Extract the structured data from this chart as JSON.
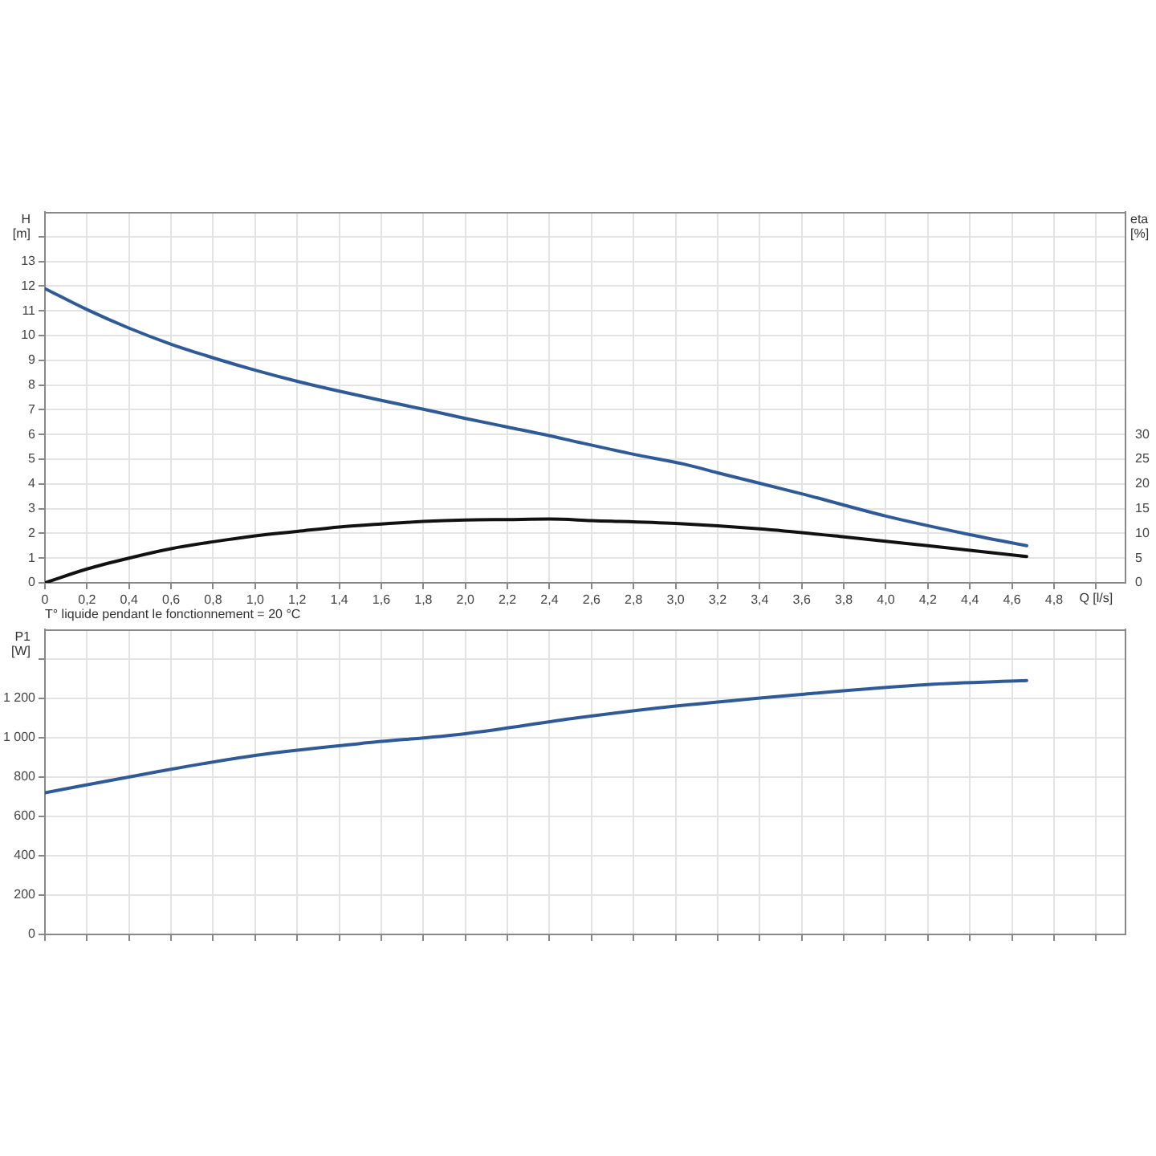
{
  "chart_data": [
    {
      "type": "line",
      "ylabel": "H [m]",
      "y2label": "eta [%]",
      "xlabel": "Q [l/s]",
      "grid": true,
      "marker": "none",
      "line_style": "solid",
      "legend": false,
      "xlim": [
        0,
        5.14
      ],
      "xticks": [
        0,
        {
          "value": 0.2,
          "label": "0,2"
        },
        {
          "value": 0.4,
          "label": "0,4"
        },
        {
          "value": 0.6,
          "label": "0,6"
        },
        {
          "value": 0.8,
          "label": "0,8"
        },
        {
          "value": 1,
          "label": "1,0"
        },
        {
          "value": 1.2,
          "label": "1,2"
        },
        {
          "value": 1.4,
          "label": "1,4"
        },
        {
          "value": 1.6,
          "label": "1,6"
        },
        {
          "value": 1.8,
          "label": "1,8"
        },
        {
          "value": 2,
          "label": "2,0"
        },
        {
          "value": 2.2,
          "label": "2,2"
        },
        {
          "value": 2.4,
          "label": "2,4"
        },
        {
          "value": 2.6,
          "label": "2,6"
        },
        {
          "value": 2.8,
          "label": "2,8"
        },
        {
          "value": 3,
          "label": "3,0"
        },
        {
          "value": 3.2,
          "label": "3,2"
        },
        {
          "value": 3.4,
          "label": "3,4"
        },
        {
          "value": 3.6,
          "label": "3,6"
        },
        {
          "value": 3.8,
          "label": "3,8"
        },
        {
          "value": 4,
          "label": "4,0"
        },
        {
          "value": 4.2,
          "label": "4,2"
        },
        {
          "value": 4.4,
          "label": "4,4"
        },
        {
          "value": 4.6,
          "label": "4,6"
        },
        {
          "value": 4.8,
          "label": "4,8"
        },
        {
          "value": 5,
          "label": null
        }
      ],
      "ylim": [
        0,
        15
      ],
      "yticks": [
        0,
        1,
        2,
        3,
        4,
        5,
        6,
        7,
        8,
        9,
        10,
        11,
        12,
        13,
        {
          "value": 14,
          "label": null
        }
      ],
      "y2lim": [
        0,
        75
      ],
      "y2ticks": [
        0,
        5,
        10,
        15,
        20,
        25,
        30
      ],
      "series": [
        {
          "color": "#2f5a98",
          "x": [
            0,
            0.2,
            0.4,
            0.6,
            0.8,
            1,
            1.2,
            1.4,
            1.6,
            1.8,
            2,
            2.2,
            2.4,
            2.53,
            2.8,
            3.04,
            3.2,
            3.6,
            4,
            4.4,
            4.67
          ],
          "values": [
            11.9,
            11.05,
            10.3,
            9.65,
            9.1,
            8.6,
            8.15,
            7.75,
            7.38,
            7.02,
            6.65,
            6.3,
            5.95,
            5.7,
            5.2,
            4.8,
            4.45,
            3.6,
            2.7,
            1.95,
            1.5
          ]
        },
        {
          "color": "#111111",
          "axis": "y2",
          "x": [
            0,
            0.2,
            0.4,
            0.6,
            0.8,
            1,
            1.2,
            1.4,
            1.6,
            1.8,
            2,
            2.2,
            2.4,
            2.6,
            3,
            3.4,
            3.8,
            4.2,
            4.67
          ],
          "values": [
            0,
            2.8,
            5,
            6.9,
            8.3,
            9.5,
            10.4,
            11.3,
            11.9,
            12.4,
            12.7,
            12.8,
            12.9,
            12.6,
            12,
            10.9,
            9.3,
            7.5,
            5.3
          ]
        }
      ]
    },
    {
      "type": "line",
      "ylabel": "P1 [W]",
      "annotations": [
        "T° liquide pendant le fonctionnement = 20 °C"
      ],
      "grid": true,
      "marker": "none",
      "line_style": "solid",
      "legend": false,
      "tick_labels": "y",
      "xlim": [
        0,
        5.14
      ],
      "xticks": [
        0,
        0.2,
        0.4,
        0.6,
        0.8,
        1,
        1.2,
        1.4,
        1.6,
        1.8,
        2,
        2.2,
        2.4,
        2.6,
        2.8,
        3,
        3.2,
        3.4,
        3.6,
        3.8,
        4,
        4.2,
        4.4,
        4.6,
        4.8,
        5
      ],
      "ylim": [
        0,
        1550
      ],
      "yticks": [
        0,
        200,
        400,
        600,
        800,
        {
          "value": 1000,
          "label": "1 000"
        },
        {
          "value": 1200,
          "label": "1 200"
        },
        {
          "value": 1400,
          "label": null
        }
      ],
      "series": [
        {
          "color": "#2f5a98",
          "x": [
            0,
            0.5,
            1,
            1.5,
            2,
            2.53,
            3,
            3.6,
            4.2,
            4.67
          ],
          "values": [
            720,
            820,
            910,
            970,
            1020,
            1100,
            1160,
            1220,
            1270,
            1290
          ]
        }
      ]
    }
  ]
}
